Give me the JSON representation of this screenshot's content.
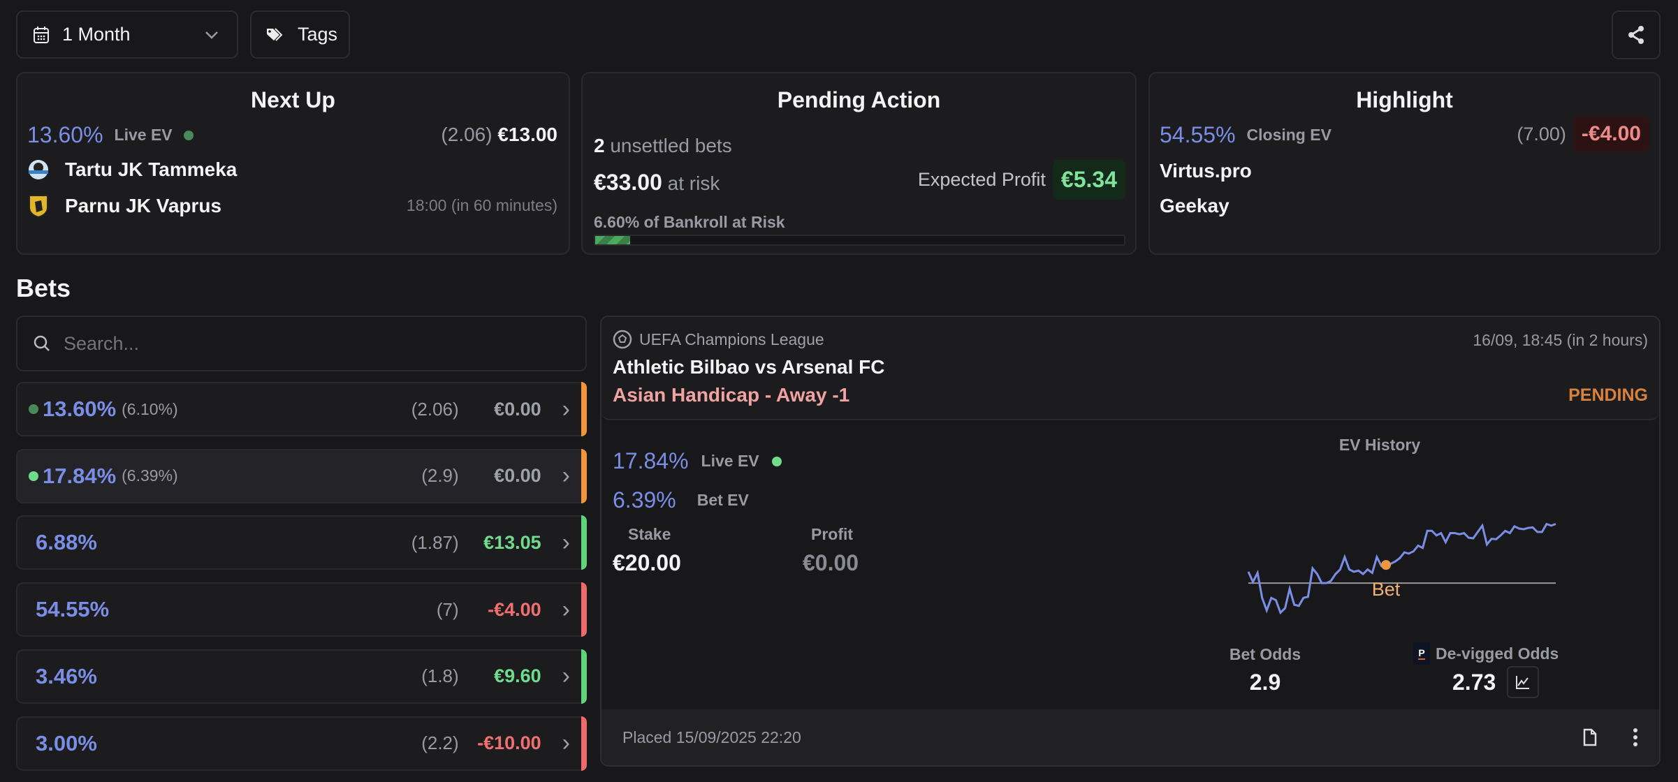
{
  "toolbar": {
    "period": "1 Month",
    "tags": "Tags"
  },
  "next_up": {
    "title": "Next Up",
    "ev": "13.60%",
    "ev_label": "Live EV",
    "odds": "(2.06)",
    "stake": "€13.00",
    "home": "Tartu JK Tammeka",
    "away": "Parnu JK Vaprus",
    "time": "18:00 (in 60 minutes)"
  },
  "pending": {
    "title": "Pending Action",
    "count": "2",
    "count_label": "unsettled bets",
    "risk": "€33.00",
    "risk_label": "at risk",
    "exp_label": "Expected Profit",
    "exp_value": "€5.34",
    "bankroll_label": "6.60% of Bankroll at Risk",
    "bankroll_pct": 6.6
  },
  "highlight": {
    "title": "Highlight",
    "ev": "54.55%",
    "ev_label": "Closing EV",
    "odds": "(7.00)",
    "result": "-€4.00",
    "team1": "Virtus.pro",
    "team2": "Geekay"
  },
  "bets": {
    "heading": "Bets",
    "search_placeholder": "Search...",
    "rows": [
      {
        "dot": "#4a8a5a",
        "ev": "13.60%",
        "ev2": "(6.10%)",
        "odds": "(2.06)",
        "amount": "€0.00",
        "amount_color": "#a1a1aa",
        "status_color": "#f0963e"
      },
      {
        "dot": "#6fdc8c",
        "ev": "17.84%",
        "ev2": "(6.39%)",
        "odds": "(2.9)",
        "amount": "€0.00",
        "amount_color": "#a1a1aa",
        "status_color": "#f0963e",
        "selected": true
      },
      {
        "ev": "6.88%",
        "odds": "(1.87)",
        "amount": "€13.05",
        "amount_color": "#6fdc8c",
        "status_color": "#5fd47a"
      },
      {
        "ev": "54.55%",
        "odds": "(7)",
        "amount": "-€4.00",
        "amount_color": "#f07070",
        "status_color": "#ee6b6b"
      },
      {
        "ev": "3.46%",
        "odds": "(1.8)",
        "amount": "€9.60",
        "amount_color": "#6fdc8c",
        "status_color": "#5fd47a"
      },
      {
        "ev": "3.00%",
        "odds": "(2.2)",
        "amount": "-€10.00",
        "amount_color": "#f07070",
        "status_color": "#ee6b6b"
      }
    ]
  },
  "detail": {
    "league": "UEFA Champions League",
    "datetime": "16/09, 18:45 (in 2 hours)",
    "match": "Athletic Bilbao vs Arsenal FC",
    "market": "Asian Handicap - Away -1",
    "status": "PENDING",
    "live_ev": "17.84%",
    "live_ev_label": "Live EV",
    "bet_ev": "6.39%",
    "bet_ev_label": "Bet EV",
    "stake_label": "Stake",
    "stake": "€20.00",
    "profit_label": "Profit",
    "profit": "€0.00",
    "bet_odds_label": "Bet Odds",
    "bet_odds": "2.9",
    "devig_label": "De-vigged Odds",
    "devig": "2.73",
    "placed": "Placed 15/09/2025 22:20"
  },
  "chart_data": {
    "type": "line",
    "title": "EV History",
    "marker_label": "Bet",
    "bet_index": 30,
    "baseline": 0,
    "ylim": [
      -15,
      28
    ],
    "line_color": "#7a8ee6",
    "marker_color": "#f0963e",
    "values": [
      5,
      0.5,
      4.5,
      -6.5,
      -12,
      -6.5,
      -7.5,
      -13,
      -11,
      -2.5,
      -9.5,
      -10,
      -6.5,
      -6,
      6.5,
      4,
      0,
      0,
      1,
      4,
      6,
      11.5,
      6,
      5,
      5.5,
      4,
      6,
      4.5,
      11.5,
      7.5,
      8,
      8.5,
      9.5,
      11,
      13.5,
      13,
      14,
      16.5,
      15.5,
      23,
      23,
      21,
      22,
      18,
      22,
      22,
      21.5,
      22,
      20,
      19.7,
      22.5,
      25.3,
      17,
      19.5,
      19.3,
      21,
      23,
      22,
      25,
      24,
      23.7,
      24.3,
      24.5,
      22.5,
      22.5,
      26,
      25.3,
      26
    ]
  }
}
